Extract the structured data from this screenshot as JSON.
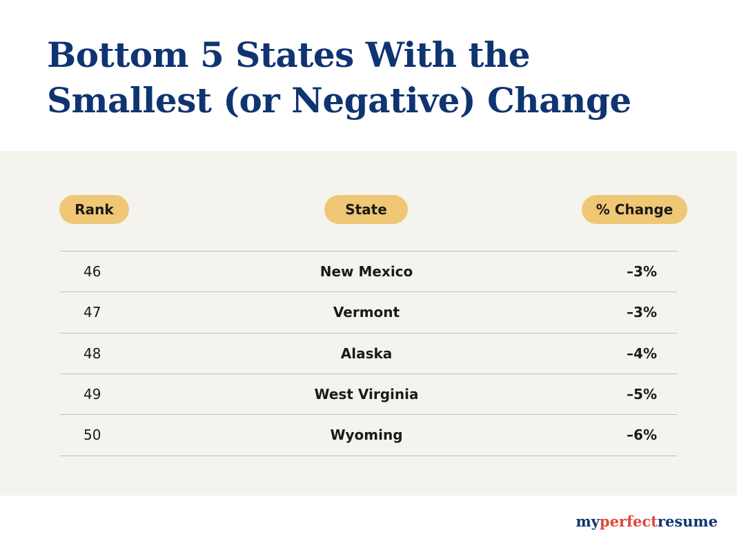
{
  "title": [
    "Bottom 5 States With the",
    "Smallest (or Negative) Change"
  ],
  "table": {
    "headers": [
      "Rank",
      "State",
      "% Change"
    ],
    "rows": [
      [
        "46",
        "New Mexico",
        "–3%"
      ],
      [
        "47",
        "Vermont",
        "–3%"
      ],
      [
        "48",
        "Alaska",
        "–4%"
      ],
      [
        "49",
        "West Virginia",
        "–5%"
      ],
      [
        "50",
        "Wyoming",
        "–6%"
      ]
    ]
  },
  "logo": [
    "my",
    "perfect",
    "resume"
  ]
}
